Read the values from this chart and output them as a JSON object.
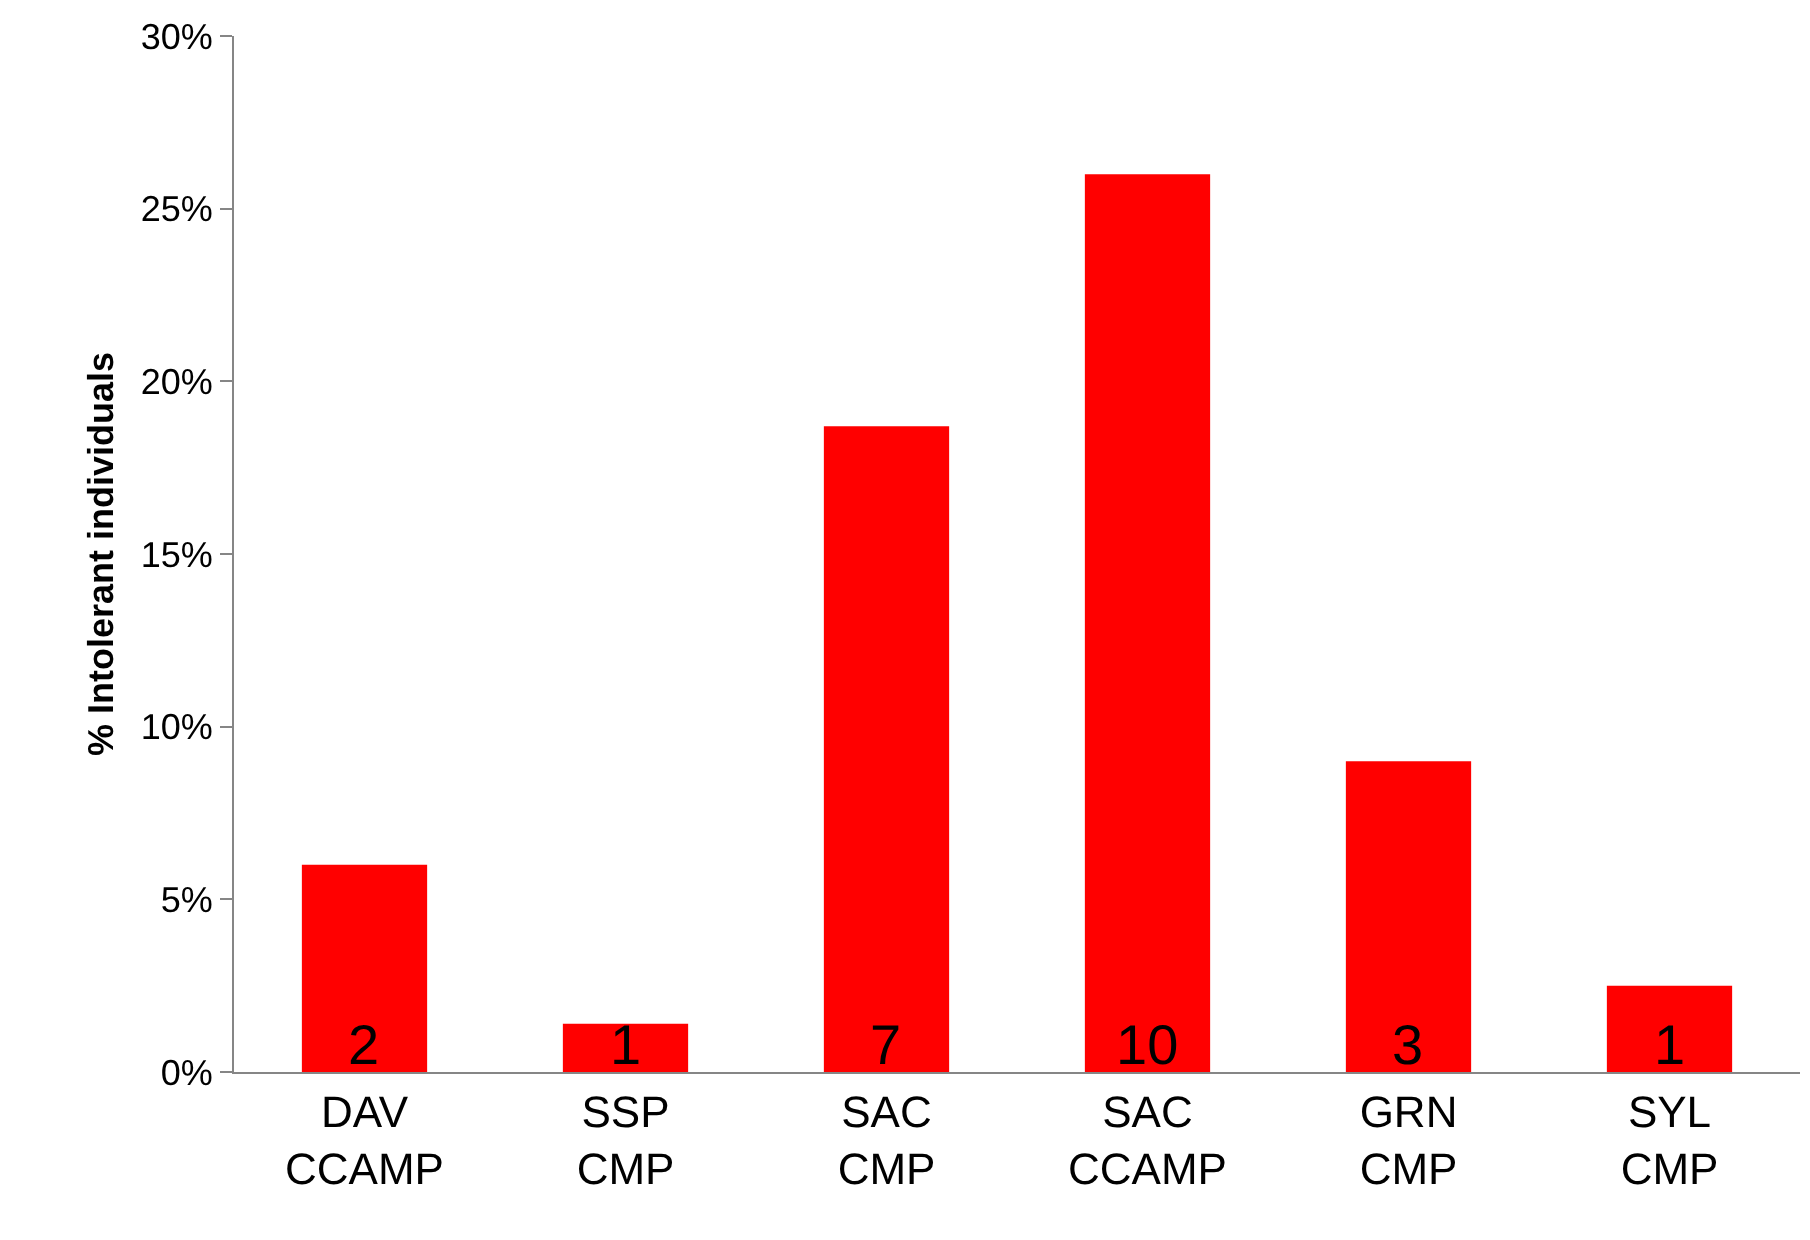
{
  "chart_data": {
    "type": "bar",
    "ylabel": "% Intolerant individuals",
    "categories": [
      "DAV\nCCAMP",
      "SSP\nCMP",
      "SAC\nCMP",
      "SAC\nCCAMP",
      "GRN\nCMP",
      "SYL\nCMP"
    ],
    "values": [
      6,
      1.4,
      18.7,
      26,
      9,
      2.5
    ],
    "annotations": [
      {
        "text": "2",
        "x": "DAV\nCCAMP",
        "y": 0
      },
      {
        "text": "1",
        "x": "SSP\nCMP",
        "y": 0
      },
      {
        "text": "7",
        "x": "SAC\nCMP",
        "y": 0
      },
      {
        "text": "10",
        "x": "SAC\nCCAMP",
        "y": 0
      },
      {
        "text": "3",
        "x": "GRN\nCMP",
        "y": 0
      },
      {
        "text": "1",
        "x": "SYL\nCMP",
        "y": 0
      }
    ],
    "color": "#ff0000",
    "ylim": [
      0,
      30
    ],
    "yticks": [
      {
        "value": 0,
        "label": "0%"
      },
      {
        "value": 5,
        "label": "5%"
      },
      {
        "value": 10,
        "label": "10%"
      },
      {
        "value": 15,
        "label": "15%"
      },
      {
        "value": 20,
        "label": "20%"
      },
      {
        "value": 25,
        "label": "25%"
      },
      {
        "value": 30,
        "label": "30%"
      }
    ],
    "legend": false
  }
}
